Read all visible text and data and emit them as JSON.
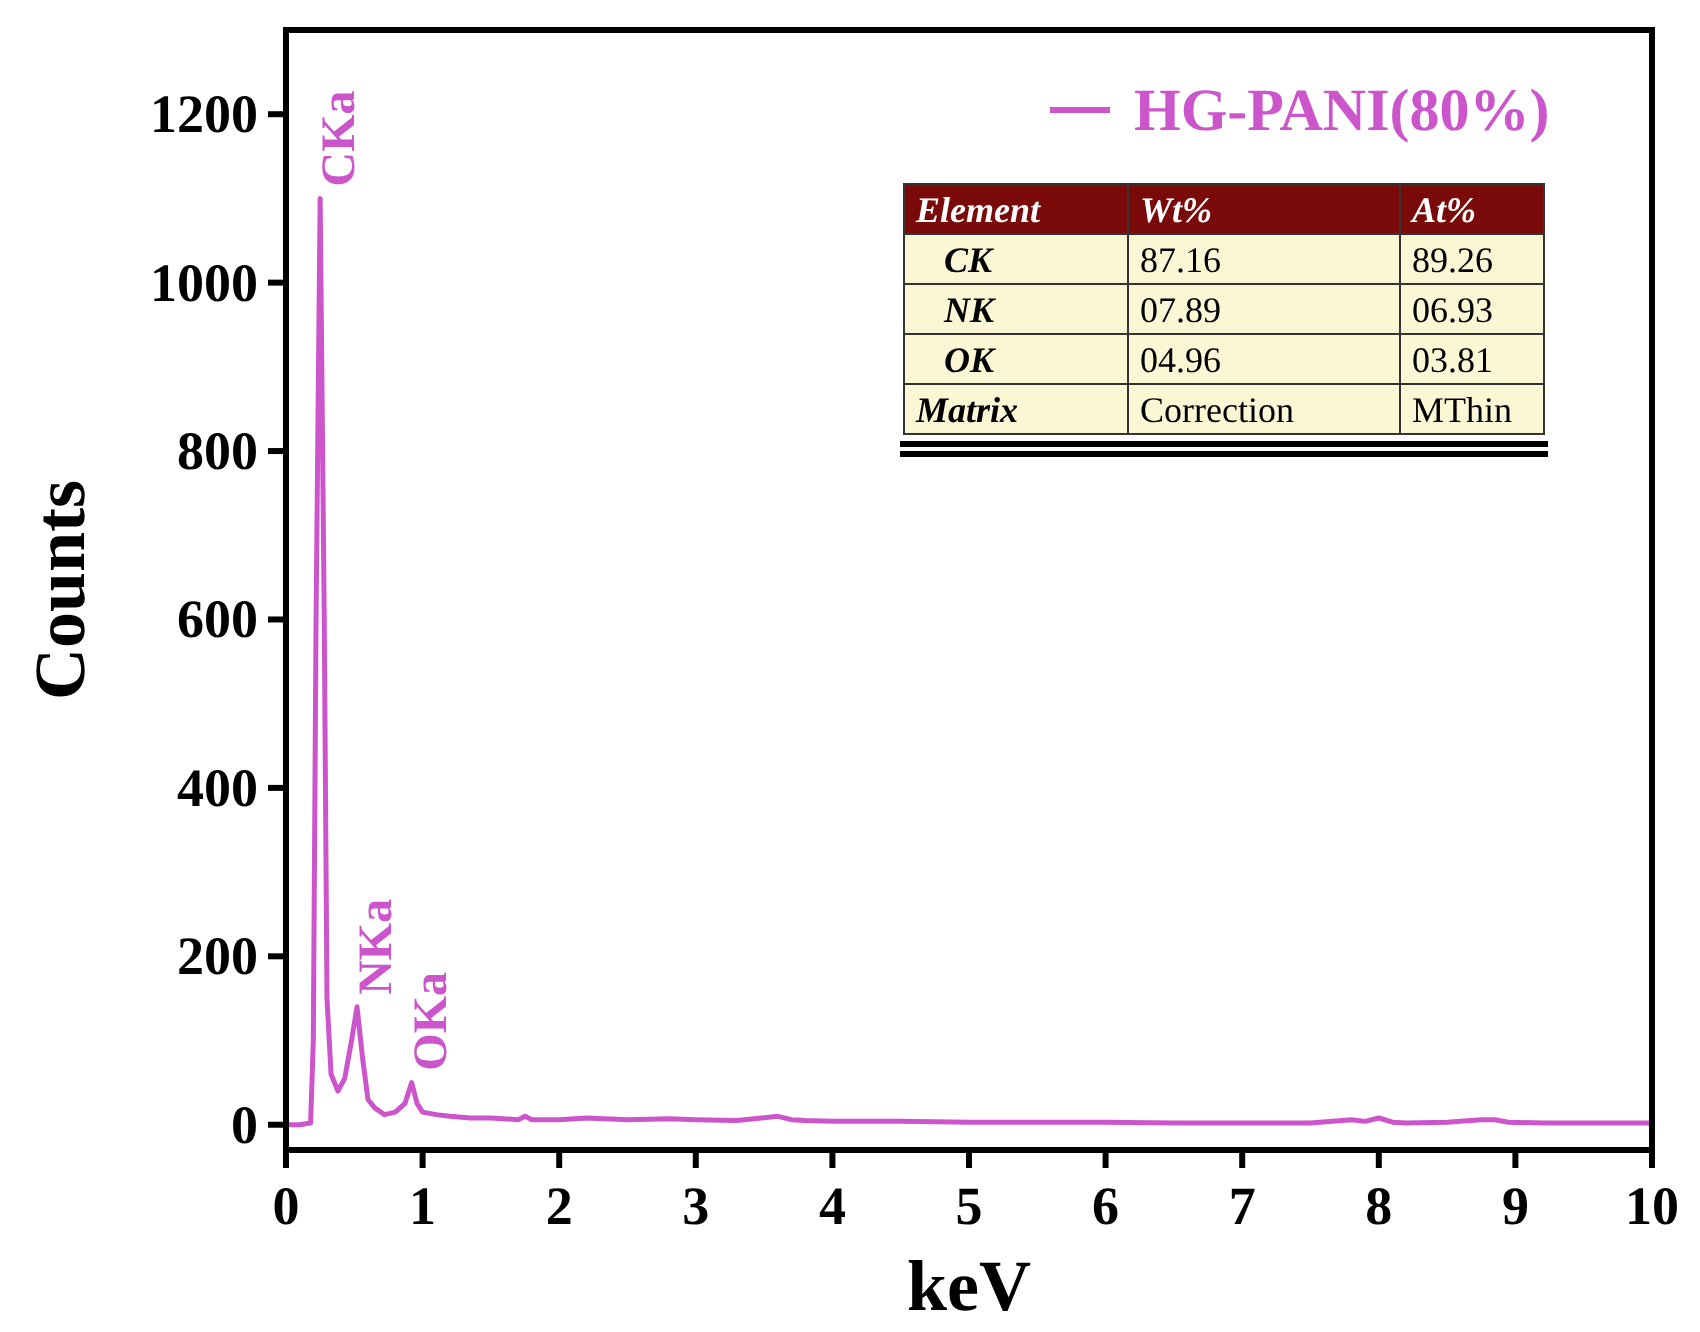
{
  "chart_data": {
    "type": "line",
    "xlabel": "keV",
    "ylabel": "Counts",
    "xlim": [
      0,
      10
    ],
    "xticks": [
      0,
      1,
      2,
      3,
      4,
      5,
      6,
      7,
      8,
      9,
      10
    ],
    "ylim": [
      -30,
      1300
    ],
    "yticks": [
      0,
      200,
      400,
      600,
      800,
      1000,
      1200
    ],
    "grid": false,
    "legend": "top right",
    "marker": "none",
    "line_style": "solid",
    "series": [
      {
        "name": "HG-PANI(80%)",
        "color": "#cc55cc",
        "x": [
          0,
          0.1,
          0.18,
          0.2,
          0.22,
          0.25,
          0.28,
          0.3,
          0.33,
          0.38,
          0.43,
          0.48,
          0.52,
          0.56,
          0.6,
          0.65,
          0.72,
          0.8,
          0.87,
          0.92,
          0.96,
          1.0,
          1.1,
          1.2,
          1.35,
          1.5,
          1.7,
          1.75,
          1.8,
          2.0,
          2.2,
          2.5,
          2.8,
          3.0,
          3.3,
          3.6,
          3.7,
          3.8,
          4.0,
          4.5,
          5.0,
          5.5,
          6.0,
          6.5,
          7.0,
          7.5,
          7.8,
          7.9,
          8.0,
          8.1,
          8.2,
          8.5,
          8.75,
          8.85,
          8.95,
          9.2,
          9.6,
          10
        ],
        "values": [
          0,
          0,
          2,
          100,
          600,
          1100,
          600,
          150,
          60,
          40,
          55,
          100,
          140,
          80,
          30,
          20,
          12,
          15,
          25,
          50,
          25,
          15,
          12,
          10,
          8,
          8,
          6,
          10,
          6,
          6,
          8,
          6,
          7,
          6,
          5,
          10,
          6,
          5,
          4,
          4,
          3,
          3,
          3,
          2,
          2,
          2,
          6,
          4,
          8,
          3,
          2,
          3,
          6,
          6,
          3,
          2,
          2,
          2
        ]
      }
    ],
    "annotations": [
      {
        "text": "CKa",
        "x": 0.25,
        "y": 1100
      },
      {
        "text": "NKa",
        "x": 0.52,
        "y": 140
      },
      {
        "text": "OKa",
        "x": 0.92,
        "y": 50
      },
      "Element",
      "Wt%",
      "At%",
      "CK",
      "87.16",
      "89.26",
      "NK",
      "07.89",
      "06.93",
      "OK",
      "04.96",
      "03.81",
      "Matrix",
      "Correction",
      "MThin"
    ]
  }
}
